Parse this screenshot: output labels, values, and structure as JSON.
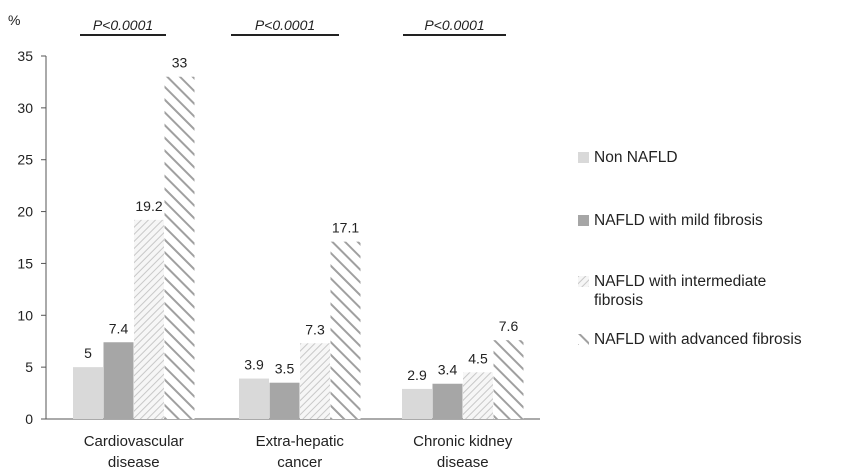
{
  "chart_data": {
    "type": "bar",
    "ylabel": "%",
    "ylim": [
      0,
      35
    ],
    "yticks": [
      0,
      5,
      10,
      15,
      20,
      25,
      30,
      35
    ],
    "grid": false,
    "legend_position": "right",
    "categories": [
      [
        "Cardiovascular",
        "disease"
      ],
      [
        "Extra-hepatic",
        "cancer"
      ],
      [
        "Chronic kidney",
        "disease"
      ]
    ],
    "group_annotations": [
      "P<0.0001",
      "P<0.0001",
      "P<0.0001"
    ],
    "series": [
      {
        "name": "Non NAFLD",
        "values": [
          5,
          3.9,
          2.9
        ],
        "labels": [
          "5",
          "3.9",
          "2.9"
        ],
        "color": "#d9d9d9",
        "pattern": "solid"
      },
      {
        "name": "NAFLD with mild fibrosis",
        "values": [
          7.4,
          3.5,
          3.4
        ],
        "labels": [
          "7.4",
          "3.5",
          "3.4"
        ],
        "color": "#a6a6a6",
        "pattern": "solid"
      },
      {
        "name": "NAFLD with intermediate fibrosis",
        "values": [
          19.2,
          7.3,
          4.5
        ],
        "labels": [
          "19.2",
          "7.3",
          "4.5"
        ],
        "color": "#c8c8c8",
        "pattern": "light-diagonal"
      },
      {
        "name": "NAFLD with advanced fibrosis",
        "values": [
          33,
          17.1,
          7.6
        ],
        "labels": [
          "33",
          "17.1",
          "7.6"
        ],
        "color": "#a0a0a0",
        "pattern": "wide-diagonal"
      }
    ]
  },
  "legend": {
    "items": [
      {
        "label": "Non NAFLD"
      },
      {
        "label": "NAFLD with mild fibrosis"
      },
      {
        "label": "NAFLD with intermediate fibrosis"
      },
      {
        "label": "NAFLD with advanced fibrosis"
      }
    ]
  }
}
